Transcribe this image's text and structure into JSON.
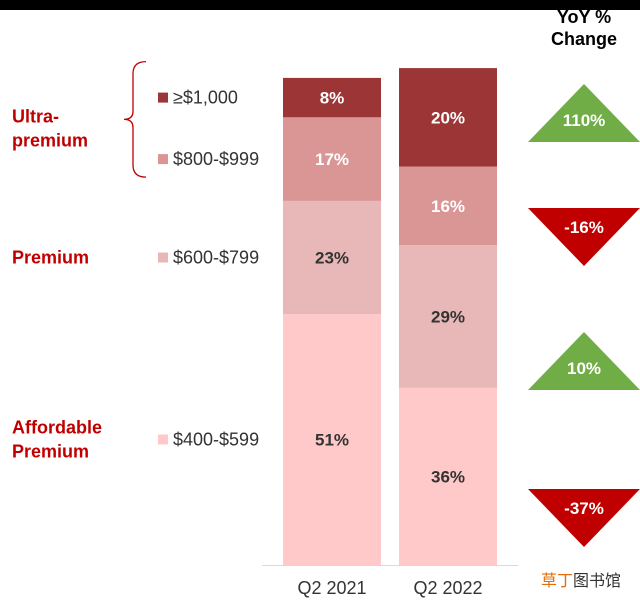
{
  "chart_data": {
    "type": "bar",
    "stacked": true,
    "categories": [
      "Q2 2021",
      "Q2 2022"
    ],
    "series": [
      {
        "name": "$400-$599",
        "values": [
          51,
          36
        ],
        "color": "#ffc9c9",
        "label_color": "#333333"
      },
      {
        "name": "$600-$799",
        "values": [
          23,
          29
        ],
        "color": "#e8b8b8",
        "label_color": "#333333"
      },
      {
        "name": "$800-$999",
        "values": [
          17,
          16
        ],
        "color": "#da9595",
        "label_color": "#ffffff"
      },
      {
        "name": "≥$1,000",
        "values": [
          8,
          20
        ],
        "color": "#9c3535",
        "label_color": "#ffffff"
      }
    ],
    "value_suffix": "%",
    "legend_order": [
      "≥$1,000",
      "$800-$999",
      "$600-$799",
      "$400-$599"
    ],
    "groups": [
      {
        "label_lines": [
          "Ultra-",
          "premium"
        ],
        "members": [
          "≥$1,000",
          "$800-$999"
        ]
      },
      {
        "label_lines": [
          "Premium"
        ],
        "members": [
          "$600-$799"
        ]
      },
      {
        "label_lines": [
          "Affordable",
          "Premium"
        ],
        "members": [
          "$400-$599"
        ]
      }
    ],
    "yoy_title_lines": [
      "YoY %",
      "Change"
    ],
    "yoy": [
      {
        "series": "≥$1,000",
        "value": "110%",
        "direction": "up",
        "color": "#70ad47"
      },
      {
        "series": "$800-$999",
        "value": "-16%",
        "direction": "down",
        "color": "#c00000"
      },
      {
        "series": "$600-$799",
        "value": "10%",
        "direction": "up",
        "color": "#70ad47"
      },
      {
        "series": "$400-$599",
        "value": "-37%",
        "direction": "down",
        "color": "#c00000"
      }
    ],
    "ylim": [
      0,
      100
    ]
  },
  "colors": {
    "group_label": "#c00000",
    "bracket": "#c00000",
    "axis": "#d9d9d9"
  },
  "watermark": {
    "part1": "草丁",
    "part2": "图书馆",
    "color1": "#e46c0a",
    "color2": "#333333"
  }
}
